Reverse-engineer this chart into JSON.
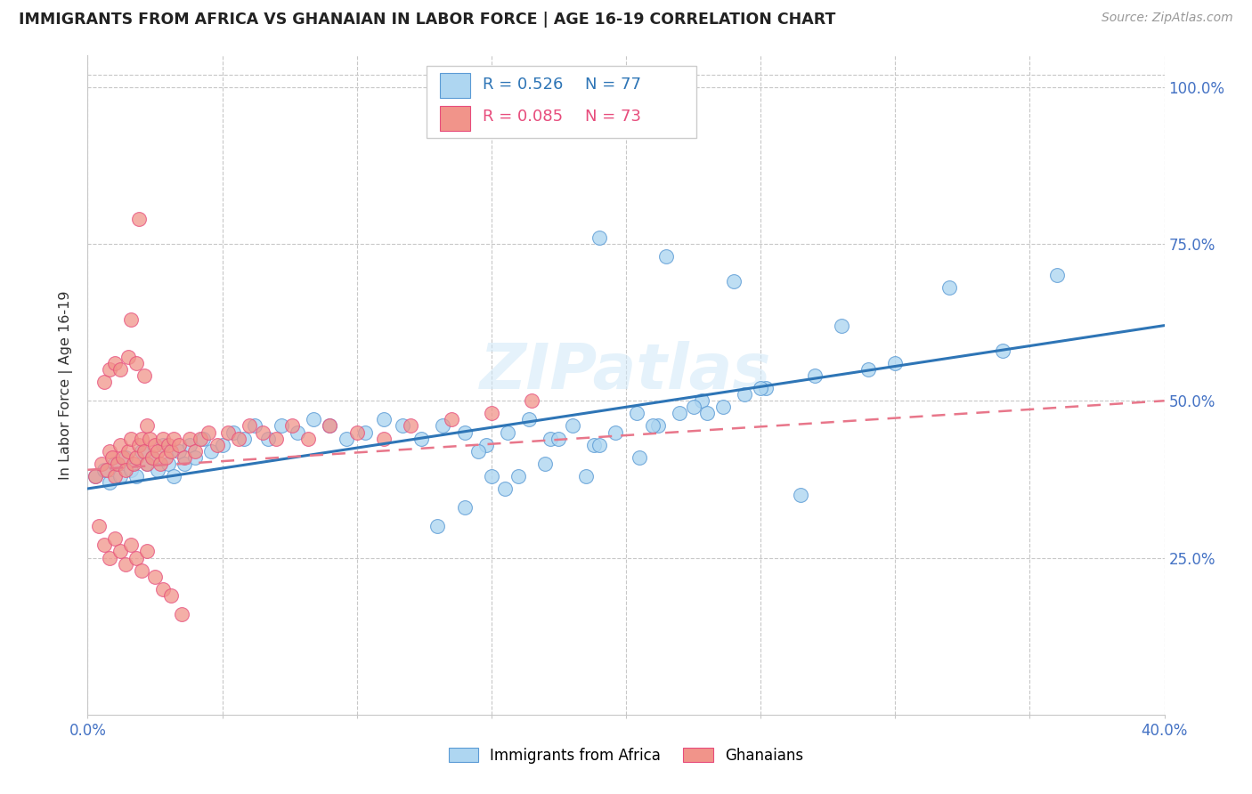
{
  "title": "IMMIGRANTS FROM AFRICA VS GHANAIAN IN LABOR FORCE | AGE 16-19 CORRELATION CHART",
  "source": "Source: ZipAtlas.com",
  "ylabel": "In Labor Force | Age 16-19",
  "xlim": [
    0.0,
    0.4
  ],
  "ylim": [
    0.0,
    1.05
  ],
  "xtick_positions": [
    0.0,
    0.05,
    0.1,
    0.15,
    0.2,
    0.25,
    0.3,
    0.35,
    0.4
  ],
  "xtick_labels": [
    "0.0%",
    "",
    "",
    "",
    "",
    "",
    "",
    "",
    "40.0%"
  ],
  "ytick_vals": [
    0.25,
    0.5,
    0.75,
    1.0
  ],
  "ytick_labels": [
    "25.0%",
    "50.0%",
    "75.0%",
    "100.0%"
  ],
  "legend_label1": "Immigrants from Africa",
  "legend_label2": "Ghanaians",
  "watermark": "ZIPatlas",
  "blue_fill": "#AED6F1",
  "blue_edge": "#5B9BD5",
  "pink_fill": "#F1948A",
  "pink_edge": "#E74C7C",
  "blue_line": "#2E75B6",
  "pink_line": "#E8768A",
  "axis_color": "#4472C4",
  "background_color": "#FFFFFF",
  "grid_color": "#C8C8C8",
  "blue_scatter_x": [
    0.003,
    0.006,
    0.008,
    0.01,
    0.012,
    0.014,
    0.016,
    0.018,
    0.02,
    0.022,
    0.024,
    0.026,
    0.028,
    0.03,
    0.032,
    0.034,
    0.036,
    0.038,
    0.04,
    0.043,
    0.046,
    0.05,
    0.054,
    0.058,
    0.062,
    0.067,
    0.072,
    0.078,
    0.084,
    0.09,
    0.096,
    0.103,
    0.11,
    0.117,
    0.124,
    0.132,
    0.14,
    0.148,
    0.156,
    0.164,
    0.172,
    0.18,
    0.188,
    0.196,
    0.204,
    0.212,
    0.22,
    0.228,
    0.236,
    0.244,
    0.252,
    0.145,
    0.16,
    0.175,
    0.19,
    0.21,
    0.23,
    0.25,
    0.27,
    0.29,
    0.155,
    0.17,
    0.185,
    0.205,
    0.225,
    0.15,
    0.14,
    0.13,
    0.28,
    0.3,
    0.32,
    0.34,
    0.36,
    0.19,
    0.215,
    0.24,
    0.265
  ],
  "blue_scatter_y": [
    0.38,
    0.39,
    0.37,
    0.4,
    0.38,
    0.41,
    0.39,
    0.38,
    0.42,
    0.4,
    0.41,
    0.39,
    0.43,
    0.4,
    0.38,
    0.42,
    0.4,
    0.43,
    0.41,
    0.44,
    0.42,
    0.43,
    0.45,
    0.44,
    0.46,
    0.44,
    0.46,
    0.45,
    0.47,
    0.46,
    0.44,
    0.45,
    0.47,
    0.46,
    0.44,
    0.46,
    0.45,
    0.43,
    0.45,
    0.47,
    0.44,
    0.46,
    0.43,
    0.45,
    0.48,
    0.46,
    0.48,
    0.5,
    0.49,
    0.51,
    0.52,
    0.42,
    0.38,
    0.44,
    0.43,
    0.46,
    0.48,
    0.52,
    0.54,
    0.55,
    0.36,
    0.4,
    0.38,
    0.41,
    0.49,
    0.38,
    0.33,
    0.3,
    0.62,
    0.56,
    0.68,
    0.58,
    0.7,
    0.76,
    0.73,
    0.69,
    0.35
  ],
  "pink_scatter_x": [
    0.003,
    0.005,
    0.007,
    0.008,
    0.009,
    0.01,
    0.011,
    0.012,
    0.013,
    0.014,
    0.015,
    0.016,
    0.017,
    0.018,
    0.019,
    0.02,
    0.021,
    0.022,
    0.023,
    0.024,
    0.025,
    0.026,
    0.027,
    0.028,
    0.029,
    0.03,
    0.031,
    0.032,
    0.034,
    0.036,
    0.038,
    0.04,
    0.042,
    0.045,
    0.048,
    0.052,
    0.056,
    0.06,
    0.065,
    0.07,
    0.076,
    0.082,
    0.09,
    0.1,
    0.11,
    0.12,
    0.135,
    0.15,
    0.165,
    0.006,
    0.008,
    0.01,
    0.012,
    0.015,
    0.018,
    0.021,
    0.004,
    0.006,
    0.008,
    0.01,
    0.012,
    0.014,
    0.016,
    0.018,
    0.02,
    0.022,
    0.025,
    0.028,
    0.031,
    0.035,
    0.016,
    0.019,
    0.022
  ],
  "pink_scatter_y": [
    0.38,
    0.4,
    0.39,
    0.42,
    0.41,
    0.38,
    0.4,
    0.43,
    0.41,
    0.39,
    0.42,
    0.44,
    0.4,
    0.41,
    0.43,
    0.44,
    0.42,
    0.4,
    0.44,
    0.41,
    0.43,
    0.42,
    0.4,
    0.44,
    0.41,
    0.43,
    0.42,
    0.44,
    0.43,
    0.41,
    0.44,
    0.42,
    0.44,
    0.45,
    0.43,
    0.45,
    0.44,
    0.46,
    0.45,
    0.44,
    0.46,
    0.44,
    0.46,
    0.45,
    0.44,
    0.46,
    0.47,
    0.48,
    0.5,
    0.53,
    0.55,
    0.56,
    0.55,
    0.57,
    0.56,
    0.54,
    0.3,
    0.27,
    0.25,
    0.28,
    0.26,
    0.24,
    0.27,
    0.25,
    0.23,
    0.26,
    0.22,
    0.2,
    0.19,
    0.16,
    0.63,
    0.79,
    0.46
  ]
}
